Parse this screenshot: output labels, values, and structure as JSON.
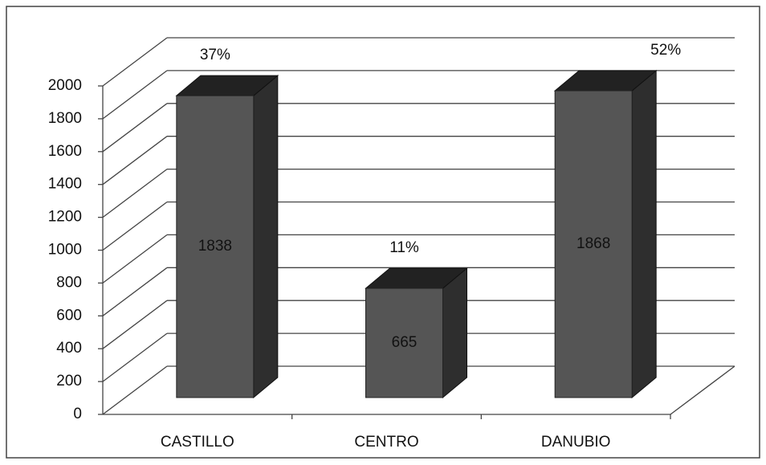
{
  "chart_data": {
    "type": "bar3d",
    "categories": [
      "CASTILLO",
      "CENTRO",
      "DANUBIO"
    ],
    "values": [
      1838,
      665,
      1868
    ],
    "annotations": [
      "37%",
      "11%",
      "52%"
    ],
    "color": "#555555",
    "ylim": [
      0,
      2000
    ],
    "yticks": [
      0,
      200,
      400,
      600,
      800,
      1000,
      1200,
      1400,
      1600,
      1800,
      2000
    ],
    "grid": true
  }
}
